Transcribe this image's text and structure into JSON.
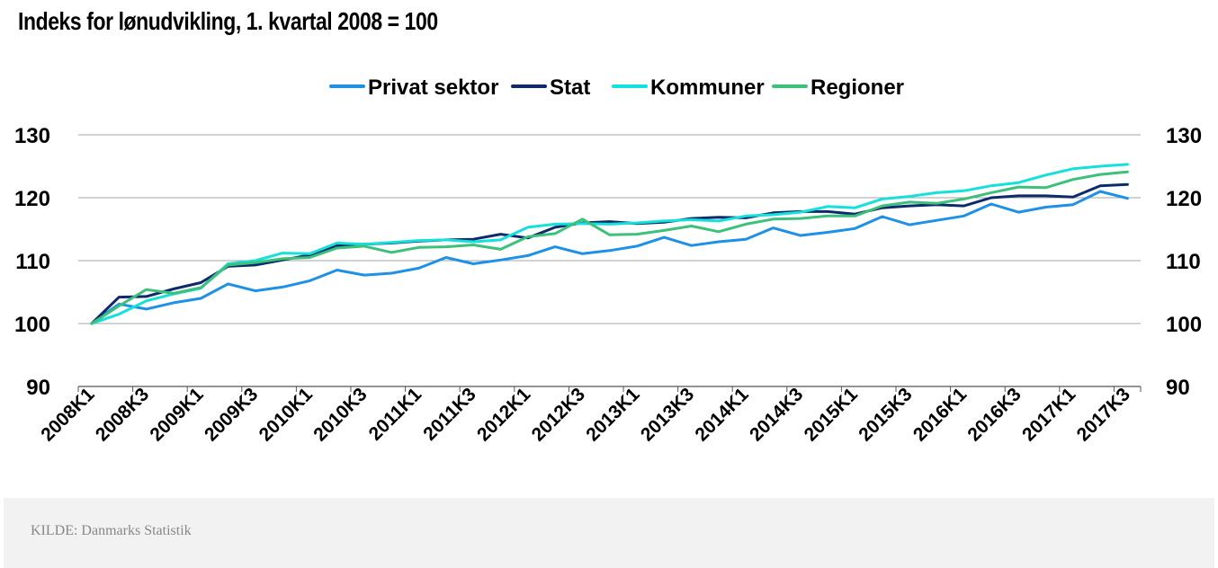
{
  "chart_data": {
    "type": "line",
    "title": "Indeks for lønudvikling, 1. kvartal 2008 = 100",
    "xlabel": "",
    "ylabel": "",
    "ylim": [
      90,
      130
    ],
    "y_ticks": [
      90,
      100,
      110,
      120,
      130
    ],
    "grid": true,
    "legend_position": "top-center",
    "x": [
      "2008K1",
      "2008K2",
      "2008K3",
      "2008K4",
      "2009K1",
      "2009K2",
      "2009K3",
      "2009K4",
      "2010K1",
      "2010K2",
      "2010K3",
      "2010K4",
      "2011K1",
      "2011K2",
      "2011K3",
      "2011K4",
      "2012K1",
      "2012K2",
      "2012K3",
      "2012K4",
      "2013K1",
      "2013K2",
      "2013K3",
      "2013K4",
      "2014K1",
      "2014K2",
      "2014K3",
      "2014K4",
      "2015K1",
      "2015K2",
      "2015K3",
      "2015K4",
      "2016K1",
      "2016K2",
      "2016K3",
      "2016K4",
      "2017K1",
      "2017K2",
      "2017K3"
    ],
    "x_tick_labels": [
      "2008K1",
      "2008K3",
      "2009K1",
      "2009K3",
      "2010K1",
      "2010K3",
      "2011K1",
      "2011K3",
      "2012K1",
      "2012K3",
      "2013K1",
      "2013K3",
      "2014K1",
      "2014K3",
      "2015K1",
      "2015K3",
      "2016K1",
      "2016K3",
      "2017K1",
      "2017K3"
    ],
    "series": [
      {
        "name": "Privat sektor",
        "color": "#1e90e6",
        "values": [
          100,
          103.1,
          102.3,
          103.3,
          104.0,
          106.3,
          105.2,
          105.8,
          106.8,
          108.5,
          107.7,
          108.0,
          108.8,
          110.5,
          109.5,
          110.1,
          110.8,
          112.2,
          111.1,
          111.6,
          112.3,
          113.7,
          112.4,
          113.0,
          113.4,
          115.2,
          114.0,
          114.5,
          115.1,
          117.0,
          115.7,
          116.4,
          117.1,
          119.0,
          117.7,
          118.5,
          118.9,
          121.0,
          119.9
        ]
      },
      {
        "name": "Stat",
        "color": "#0d2a6b",
        "values": [
          100,
          104.2,
          104.3,
          105.5,
          106.5,
          109.1,
          109.3,
          110.1,
          110.9,
          112.4,
          112.6,
          112.8,
          113.1,
          113.3,
          113.4,
          114.2,
          113.6,
          115.3,
          116.0,
          116.2,
          115.9,
          116.1,
          116.7,
          116.9,
          116.8,
          117.6,
          117.8,
          117.8,
          117.4,
          118.4,
          118.7,
          118.9,
          118.7,
          120.0,
          120.3,
          120.3,
          120.1,
          121.9,
          122.1
        ]
      },
      {
        "name": "Kommuner",
        "color": "#14e0dc",
        "values": [
          100,
          101.5,
          103.6,
          104.7,
          105.6,
          109.5,
          110.0,
          111.2,
          111.1,
          112.8,
          112.6,
          112.9,
          113.2,
          113.3,
          113.0,
          113.3,
          115.3,
          115.8,
          115.9,
          115.8,
          116.0,
          116.3,
          116.5,
          116.3,
          117.1,
          117.3,
          117.7,
          118.6,
          118.4,
          119.8,
          120.2,
          120.8,
          121.1,
          121.9,
          122.4,
          123.6,
          124.6,
          125.0,
          125.3
        ]
      },
      {
        "name": "Regioner",
        "color": "#3cc07a",
        "values": [
          100,
          102.8,
          105.4,
          104.8,
          105.7,
          109.3,
          109.7,
          110.3,
          110.5,
          112.0,
          112.3,
          111.3,
          112.1,
          112.2,
          112.5,
          111.8,
          113.8,
          114.3,
          116.6,
          114.1,
          114.2,
          114.8,
          115.5,
          114.6,
          115.8,
          116.6,
          116.7,
          117.1,
          117.1,
          118.7,
          119.3,
          119.1,
          119.8,
          120.8,
          121.7,
          121.6,
          122.9,
          123.7,
          124.1
        ]
      }
    ]
  },
  "footer": {
    "source": "KILDE: Danmarks Statistik"
  }
}
